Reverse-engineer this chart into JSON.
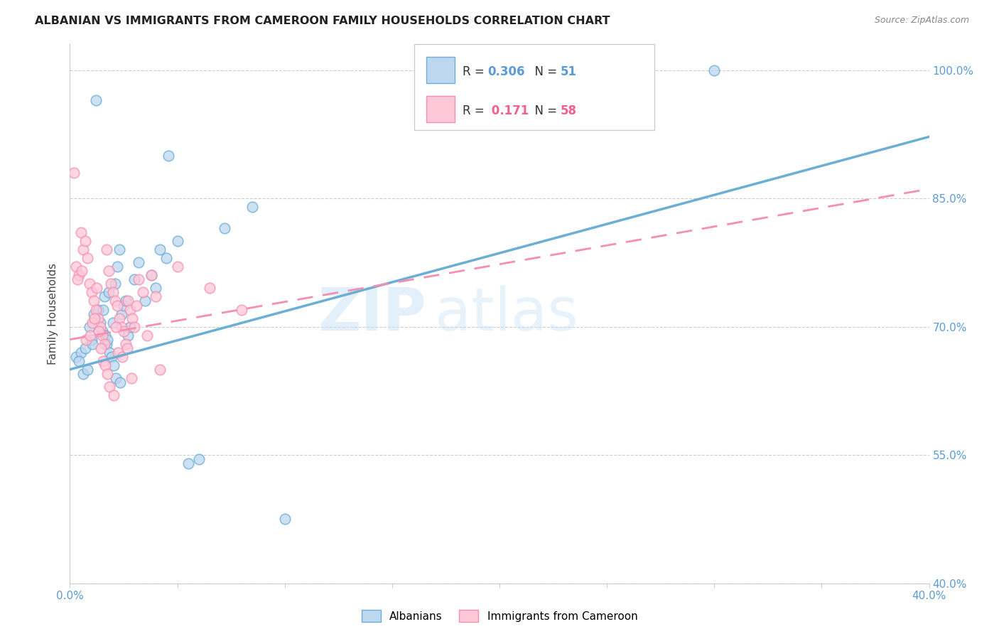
{
  "title": "ALBANIAN VS IMMIGRANTS FROM CAMEROON FAMILY HOUSEHOLDS CORRELATION CHART",
  "source": "Source: ZipAtlas.com",
  "ylabel": "Family Households",
  "y_ticks": [
    40.0,
    55.0,
    70.0,
    85.0,
    100.0
  ],
  "xlim": [
    0.0,
    40.0
  ],
  "ylim": [
    40.0,
    103.0
  ],
  "blue_color": "#6baed6",
  "pink_color": "#f48fb1",
  "blue_fill": "#bdd7ee",
  "pink_fill": "#ffc8d8",
  "watermark_zip": "ZIP",
  "watermark_atlas": "atlas",
  "background_color": "#ffffff",
  "grid_color": "#c8c8c8",
  "albanians_x": [
    1.2,
    4.6,
    0.3,
    0.5,
    0.6,
    0.8,
    1.0,
    1.1,
    1.3,
    1.5,
    1.6,
    1.7,
    1.8,
    2.0,
    2.1,
    2.2,
    2.3,
    2.4,
    2.5,
    2.6,
    2.7,
    2.8,
    3.0,
    3.2,
    3.5,
    3.8,
    4.0,
    4.2,
    4.5,
    5.0,
    5.5,
    6.0,
    7.2,
    8.5,
    10.0,
    19.5,
    30.0,
    0.4,
    0.7,
    0.9,
    1.05,
    1.4,
    1.55,
    1.65,
    1.75,
    1.85,
    1.95,
    2.05,
    2.15,
    2.35
  ],
  "albanians_y": [
    96.5,
    90.0,
    66.5,
    67.0,
    64.5,
    65.0,
    68.5,
    71.5,
    72.0,
    69.5,
    73.5,
    68.0,
    74.0,
    70.5,
    75.0,
    77.0,
    79.0,
    71.5,
    72.5,
    73.0,
    69.0,
    70.0,
    75.5,
    77.5,
    73.0,
    76.0,
    74.5,
    79.0,
    78.0,
    80.0,
    54.0,
    54.5,
    81.5,
    84.0,
    47.5,
    100.0,
    100.0,
    66.0,
    67.5,
    70.0,
    68.0,
    70.5,
    72.0,
    69.0,
    68.5,
    67.0,
    66.5,
    65.5,
    64.0,
    63.5
  ],
  "cameroon_x": [
    0.2,
    0.3,
    0.4,
    0.5,
    0.6,
    0.7,
    0.8,
    0.9,
    1.0,
    1.1,
    1.2,
    1.3,
    1.4,
    1.5,
    1.6,
    1.7,
    1.8,
    1.9,
    2.0,
    2.1,
    2.2,
    2.3,
    2.4,
    2.5,
    2.6,
    2.7,
    2.8,
    2.9,
    3.0,
    3.2,
    3.4,
    3.6,
    3.8,
    4.0,
    4.2,
    5.0,
    6.5,
    8.0,
    2.15,
    1.25,
    0.35,
    0.55,
    0.75,
    0.95,
    1.05,
    1.15,
    1.35,
    1.45,
    1.55,
    1.65,
    1.75,
    1.85,
    2.05,
    2.25,
    2.45,
    2.65,
    2.85,
    3.1
  ],
  "cameroon_y": [
    88.0,
    77.0,
    76.0,
    81.0,
    79.0,
    80.0,
    78.0,
    75.0,
    74.0,
    73.0,
    72.0,
    71.0,
    70.0,
    69.0,
    68.0,
    79.0,
    76.5,
    75.0,
    74.0,
    73.0,
    72.5,
    71.0,
    70.0,
    69.5,
    68.0,
    73.0,
    72.0,
    71.0,
    70.0,
    75.5,
    74.0,
    69.0,
    76.0,
    73.5,
    65.0,
    77.0,
    74.5,
    72.0,
    70.0,
    74.5,
    75.5,
    76.5,
    68.5,
    69.0,
    70.5,
    71.0,
    69.5,
    67.5,
    66.0,
    65.5,
    64.5,
    63.0,
    62.0,
    67.0,
    66.5,
    67.5,
    64.0,
    72.5
  ]
}
